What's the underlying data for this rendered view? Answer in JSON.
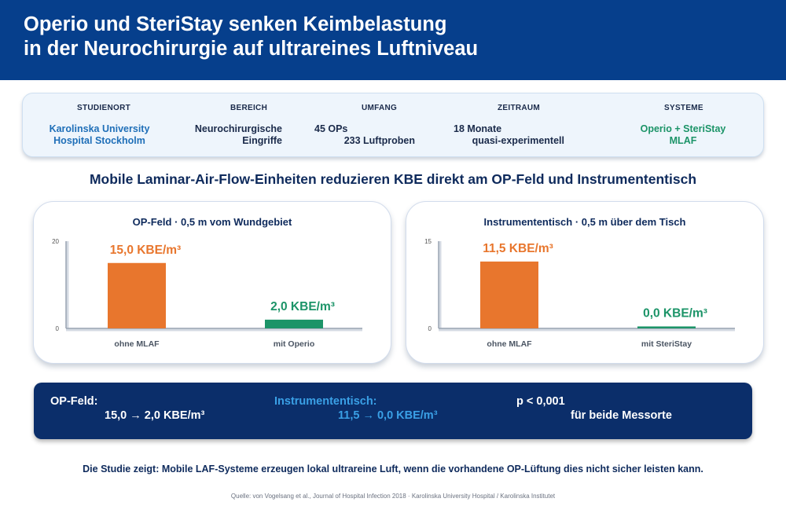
{
  "header": {
    "title_line1": "Operio und SteriStay senken Keimbelastung",
    "title_line2": "in der Neurochirurgie auf ultrareines Luftniveau"
  },
  "study": {
    "columns": [
      {
        "head": "STUDIENORT",
        "line1": "Karolinska University",
        "line2": "Hospital Stockholm"
      },
      {
        "head": "BEREICH",
        "line1": "Neurochirurgische",
        "line2": "Eingriffe"
      },
      {
        "head": "UMFANG",
        "line1": "45 OPs",
        "line2": "233 Luftproben"
      },
      {
        "head": "ZEITRAUM",
        "line1": "18 Monate",
        "line2": "quasi-experimentell"
      },
      {
        "head": "SYSTEME",
        "line1": "Operio + SteriStay",
        "line2": "MLAF"
      }
    ]
  },
  "subheading": "Mobile Laminar-Air-Flow-Einheiten reduzieren KBE direkt am OP-Feld und Instrumententisch",
  "colors": {
    "header_bg": "#063f8c",
    "orange": "#e8762d",
    "green": "#1c9468",
    "blue_text": "#1f6fb8",
    "summary_bg": "#0b2e6a",
    "summary_accent": "#3aa0e6"
  },
  "chart_data": [
    {
      "type": "bar",
      "title": "OP-Feld · 0,5 m vom Wundgebiet",
      "categories": [
        "ohne MLAF",
        "mit Operio"
      ],
      "values": [
        15.0,
        2.0
      ],
      "data_labels": [
        "15,0 KBE/m³",
        "2,0 KBE/m³"
      ],
      "bar_colors": [
        "#e8762d",
        "#1c9468"
      ],
      "ylim": [
        0,
        20
      ],
      "yticks": [
        "0",
        "20"
      ],
      "xlabel": "",
      "ylabel": ""
    },
    {
      "type": "bar",
      "title": "Instrumententisch · 0,5 m über dem Tisch",
      "categories": [
        "ohne MLAF",
        "mit SteriStay"
      ],
      "values": [
        11.5,
        0.0
      ],
      "data_labels": [
        "11,5 KBE/m³",
        "0,0 KBE/m³"
      ],
      "bar_colors": [
        "#e8762d",
        "#1c9468"
      ],
      "ylim": [
        0,
        15
      ],
      "yticks": [
        "0",
        "15"
      ],
      "xlabel": "",
      "ylabel": ""
    }
  ],
  "summary": {
    "op_label": "OP-Feld:",
    "op_value": "15,0 → 2,0 KBE/m³",
    "instr_label": "Instrumententisch:",
    "instr_value": "11,5 → 0,0 KBE/m³",
    "p_label": "p < 0,001",
    "p_value": "für beide Messorte"
  },
  "conclusion": "Die Studie zeigt: Mobile LAF-Systeme erzeugen lokal ultrareine Luft, wenn die vorhandene OP-Lüftung dies nicht sicher leisten kann.",
  "source": "Quelle: von Vogelsang et al., Journal of Hospital Infection 2018 · Karolinska University Hospital / Karolinska Institutet"
}
